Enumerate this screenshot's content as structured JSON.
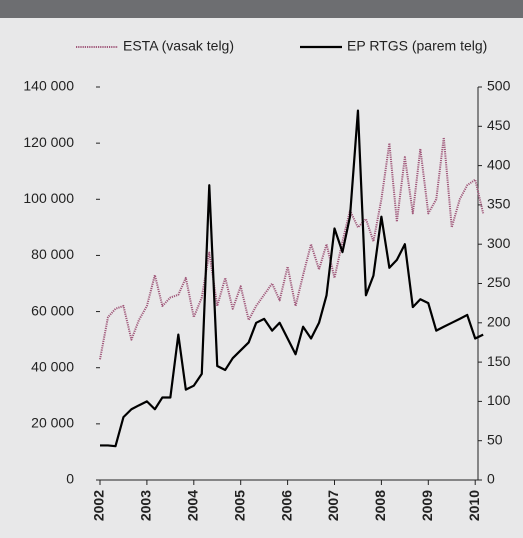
{
  "chart_data": {
    "type": "line",
    "x": [
      2002.0,
      2002.17,
      2002.33,
      2002.5,
      2002.67,
      2002.83,
      2003.0,
      2003.17,
      2003.33,
      2003.5,
      2003.67,
      2003.83,
      2004.0,
      2004.17,
      2004.33,
      2004.5,
      2004.67,
      2004.83,
      2005.0,
      2005.17,
      2005.33,
      2005.5,
      2005.67,
      2005.83,
      2006.0,
      2006.17,
      2006.33,
      2006.5,
      2006.67,
      2006.83,
      2007.0,
      2007.17,
      2007.33,
      2007.5,
      2007.67,
      2007.83,
      2008.0,
      2008.17,
      2008.33,
      2008.5,
      2008.67,
      2008.83,
      2009.0,
      2009.17,
      2009.33,
      2009.5,
      2009.67,
      2009.83,
      2010.0,
      2010.17
    ],
    "series": [
      {
        "name": "ESTA (vasak telg)",
        "color": "#a0587a",
        "dashed": true,
        "values": [
          43000,
          58000,
          61000,
          62000,
          50000,
          57000,
          62000,
          73000,
          62000,
          65000,
          66000,
          72000,
          58000,
          65000,
          81000,
          62000,
          72000,
          61000,
          69000,
          57000,
          62000,
          66000,
          70000,
          64000,
          76000,
          62000,
          73000,
          84000,
          75000,
          84000,
          72000,
          85000,
          96000,
          90000,
          93000,
          85000,
          100000,
          120000,
          92000,
          115000,
          95000,
          118000,
          95000,
          100000,
          122000,
          90000,
          100000,
          105000,
          107000,
          95000
        ]
      },
      {
        "name": "EP RTGS (parem telg)",
        "color": "#000000",
        "axis": "y2",
        "values": [
          44,
          44,
          43,
          80,
          90,
          95,
          100,
          90,
          105,
          105,
          185,
          115,
          120,
          135,
          375,
          145,
          140,
          155,
          165,
          175,
          200,
          205,
          190,
          200,
          180,
          160,
          195,
          180,
          200,
          235,
          320,
          290,
          335,
          470,
          235,
          260,
          335,
          270,
          280,
          300,
          220,
          230,
          225,
          190,
          195,
          200,
          205,
          210,
          180,
          185
        ]
      }
    ],
    "xlim": [
      2002,
      2010.2
    ],
    "xticks": [
      2002,
      2003,
      2004,
      2005,
      2006,
      2007,
      2008,
      2009,
      2010
    ],
    "ylim": [
      0,
      140000
    ],
    "yticks": [
      0,
      {
        "value": 20000,
        "label": "20 000"
      },
      {
        "value": 40000,
        "label": "40 000"
      },
      {
        "value": 60000,
        "label": "60 000"
      },
      {
        "value": 80000,
        "label": "80 000"
      },
      {
        "value": 100000,
        "label": "100 000"
      },
      {
        "value": 120000,
        "label": "120 000"
      },
      {
        "value": 140000,
        "label": "140 000"
      }
    ],
    "y2lim": [
      0,
      500
    ],
    "y2ticks": [
      0,
      50,
      100,
      150,
      200,
      250,
      300,
      350,
      400,
      450,
      500
    ],
    "legend": "top"
  }
}
